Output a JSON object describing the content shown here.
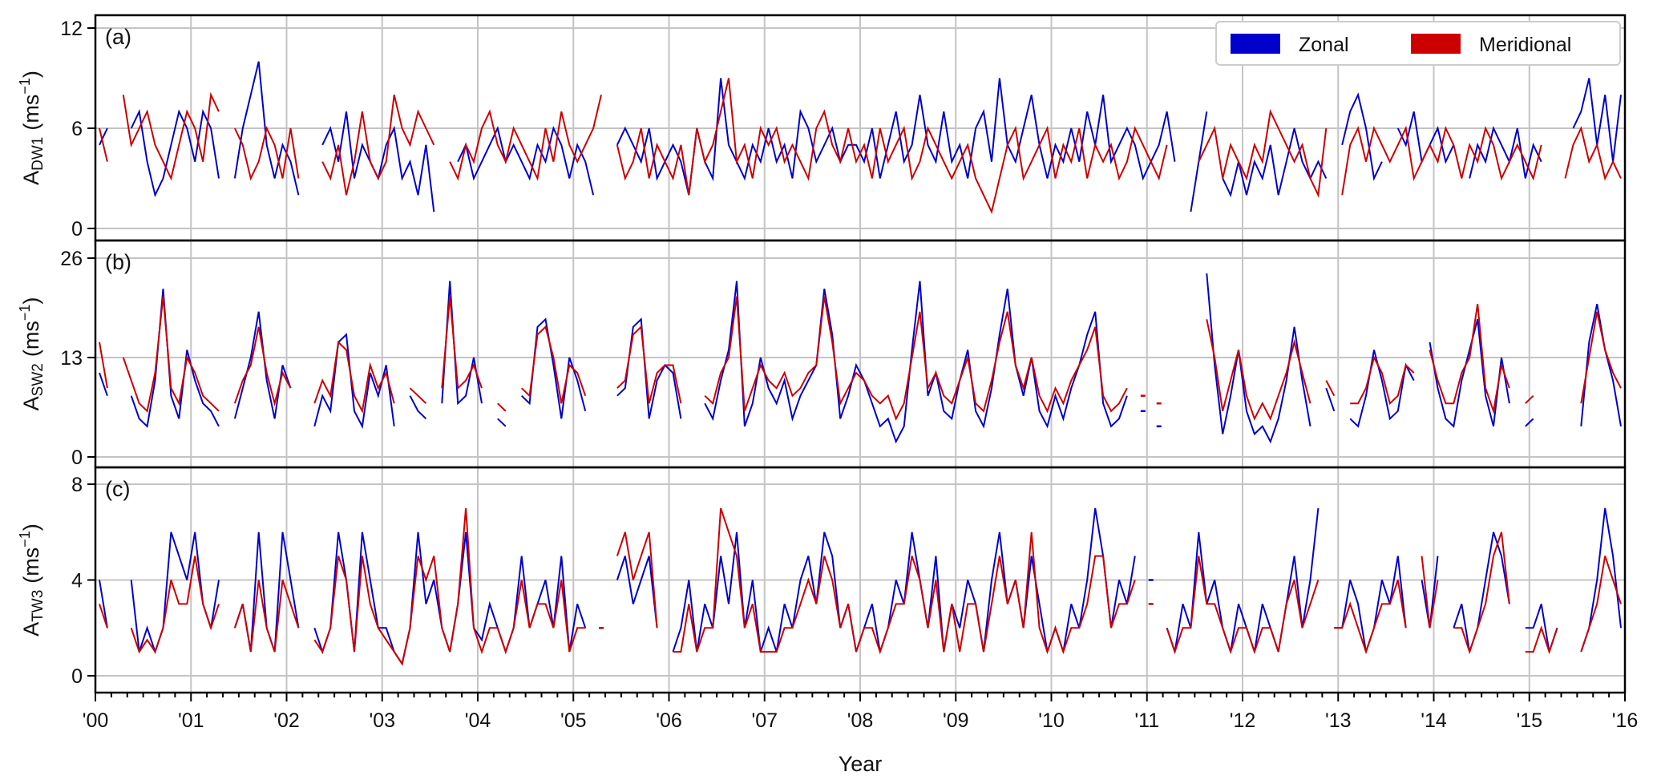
{
  "chart_data": {
    "type": "line",
    "xlabel": "Year",
    "x_ticks": [
      "'00",
      "'01",
      "'02",
      "'03",
      "'04",
      "'05",
      "'06",
      "'07",
      "'08",
      "'09",
      "'10",
      "'11",
      "'12",
      "'13",
      "'14",
      "'15",
      "'16"
    ],
    "x_range": [
      2000,
      2016
    ],
    "resolution": "monthly (approximate)",
    "legend": {
      "position": "top-right",
      "entries": [
        {
          "name": "Zonal",
          "color": "#0000cc"
        },
        {
          "name": "Meridional",
          "color": "#cc0000"
        }
      ]
    },
    "colors": {
      "zonal": "#0000cc",
      "meridional": "#cc0000"
    },
    "panels": [
      {
        "label": "(a)",
        "ylabel_main": "A",
        "ylabel_sub": "DW1",
        "ylabel_unit": "(ms",
        "ylabel_exp": "−1",
        "ylabel_close": ")",
        "ylim": [
          0,
          12
        ],
        "yticks": [
          0,
          6,
          12
        ],
        "zonal": [
          5,
          6,
          null,
          null,
          6,
          7,
          4,
          2,
          3,
          5,
          7,
          6,
          4,
          7,
          6,
          3,
          null,
          3,
          6,
          8,
          10,
          5,
          3,
          5,
          4,
          2,
          null,
          null,
          5,
          6,
          4,
          7,
          3,
          5,
          4,
          3,
          5,
          6,
          3,
          4,
          2,
          5,
          1,
          null,
          null,
          4,
          5,
          3,
          4,
          5,
          6,
          4,
          5,
          4,
          3,
          5,
          4,
          6,
          5,
          3,
          5,
          4,
          2,
          null,
          null,
          5,
          6,
          5,
          4,
          6,
          3,
          4,
          5,
          4,
          2,
          6,
          4,
          3,
          9,
          5,
          4,
          3,
          5,
          4,
          6,
          4,
          5,
          3,
          7,
          6,
          4,
          5,
          6,
          4,
          5,
          5,
          4,
          6,
          3,
          5,
          7,
          4,
          5,
          8,
          5,
          4,
          7,
          4,
          5,
          3,
          6,
          7,
          4,
          9,
          5,
          4,
          6,
          8,
          5,
          3,
          5,
          4,
          6,
          4,
          7,
          5,
          8,
          4,
          5,
          6,
          5,
          3,
          4,
          5,
          7,
          4,
          null,
          1,
          4,
          7,
          null,
          3,
          2,
          4,
          2,
          4,
          3,
          5,
          2,
          4,
          6,
          4,
          3,
          4,
          3,
          null,
          5,
          7,
          8,
          6,
          3,
          4,
          null,
          6,
          5,
          7,
          4,
          5,
          6,
          4,
          5,
          null,
          3,
          5,
          4,
          6,
          5,
          4,
          6,
          3,
          5,
          4,
          null,
          null,
          null,
          6,
          7,
          9,
          5,
          8,
          4,
          8
        ],
        "meridional": [
          6,
          4,
          null,
          8,
          5,
          6,
          7,
          5,
          4,
          3,
          5,
          7,
          6,
          4,
          8,
          7,
          null,
          6,
          5,
          3,
          4,
          6,
          5,
          3,
          6,
          3,
          null,
          null,
          4,
          3,
          5,
          2,
          4,
          7,
          4,
          3,
          4,
          8,
          6,
          5,
          7,
          6,
          5,
          null,
          4,
          3,
          5,
          4,
          6,
          7,
          5,
          4,
          6,
          5,
          4,
          3,
          6,
          4,
          7,
          5,
          4,
          5,
          6,
          8,
          null,
          5,
          3,
          4,
          6,
          3,
          5,
          4,
          3,
          5,
          2,
          6,
          4,
          5,
          7,
          9,
          4,
          5,
          3,
          6,
          5,
          6,
          4,
          5,
          4,
          3,
          6,
          7,
          5,
          4,
          6,
          4,
          5,
          3,
          6,
          4,
          5,
          6,
          3,
          4,
          6,
          5,
          4,
          3,
          4,
          5,
          3,
          2,
          1,
          3,
          5,
          6,
          3,
          4,
          5,
          6,
          3,
          5,
          4,
          6,
          3,
          5,
          4,
          5,
          3,
          4,
          6,
          5,
          4,
          3,
          5,
          null,
          null,
          null,
          4,
          5,
          6,
          3,
          5,
          4,
          3,
          5,
          4,
          7,
          6,
          5,
          4,
          5,
          3,
          2,
          6,
          null,
          2,
          5,
          6,
          4,
          6,
          5,
          4,
          5,
          6,
          3,
          4,
          5,
          4,
          6,
          5,
          3,
          5,
          4,
          6,
          5,
          3,
          4,
          5,
          4,
          3,
          5,
          null,
          null,
          3,
          5,
          6,
          4,
          5,
          3,
          4,
          3
        ]
      },
      {
        "label": "(b)",
        "ylabel_main": "A",
        "ylabel_sub": "SW2",
        "ylabel_unit": "(ms",
        "ylabel_exp": "−1",
        "ylabel_close": ")",
        "ylim": [
          0,
          26
        ],
        "yticks": [
          0,
          13,
          26
        ],
        "zonal": [
          11,
          8,
          null,
          null,
          8,
          5,
          4,
          10,
          22,
          8,
          5,
          14,
          10,
          7,
          6,
          4,
          null,
          5,
          9,
          13,
          19,
          10,
          5,
          12,
          9,
          null,
          null,
          4,
          8,
          6,
          15,
          16,
          6,
          4,
          11,
          8,
          12,
          4,
          null,
          8,
          6,
          5,
          null,
          7,
          23,
          7,
          8,
          13,
          7,
          null,
          5,
          4,
          null,
          8,
          7,
          17,
          18,
          12,
          5,
          13,
          10,
          6,
          null,
          null,
          null,
          8,
          9,
          17,
          18,
          5,
          10,
          12,
          11,
          5,
          null,
          null,
          7,
          5,
          10,
          14,
          23,
          4,
          7,
          13,
          9,
          7,
          10,
          5,
          8,
          10,
          12,
          22,
          16,
          5,
          8,
          12,
          10,
          7,
          4,
          5,
          2,
          4,
          14,
          23,
          8,
          11,
          6,
          5,
          10,
          14,
          6,
          4,
          9,
          16,
          22,
          12,
          8,
          13,
          6,
          4,
          8,
          5,
          9,
          12,
          16,
          19,
          7,
          4,
          5,
          8,
          null,
          6,
          null,
          4,
          null,
          null,
          null,
          null,
          null,
          24,
          12,
          3,
          8,
          14,
          6,
          3,
          4,
          2,
          5,
          10,
          17,
          10,
          4,
          null,
          9,
          6,
          null,
          5,
          4,
          8,
          14,
          10,
          5,
          6,
          12,
          10,
          null,
          15,
          9,
          5,
          4,
          10,
          14,
          18,
          8,
          4,
          13,
          7,
          null,
          4,
          5,
          null,
          null,
          null,
          null,
          null,
          4,
          15,
          20,
          14,
          10,
          4
        ],
        "meridional": [
          15,
          9,
          null,
          13,
          10,
          7,
          6,
          11,
          21,
          9,
          7,
          13,
          11,
          8,
          7,
          6,
          null,
          7,
          10,
          12,
          17,
          11,
          7,
          11,
          9,
          null,
          null,
          7,
          10,
          8,
          15,
          14,
          8,
          6,
          12,
          9,
          11,
          7,
          null,
          9,
          8,
          7,
          null,
          9,
          21,
          9,
          10,
          12,
          9,
          null,
          7,
          6,
          null,
          9,
          8,
          16,
          17,
          13,
          7,
          12,
          11,
          8,
          null,
          null,
          null,
          9,
          10,
          16,
          17,
          7,
          11,
          12,
          12,
          7,
          null,
          null,
          8,
          7,
          11,
          13,
          21,
          6,
          9,
          12,
          10,
          9,
          11,
          8,
          9,
          11,
          12,
          21,
          15,
          7,
          9,
          11,
          10,
          8,
          7,
          8,
          5,
          7,
          13,
          19,
          9,
          11,
          8,
          7,
          10,
          13,
          7,
          6,
          10,
          15,
          19,
          12,
          9,
          13,
          8,
          6,
          9,
          7,
          10,
          12,
          14,
          17,
          8,
          6,
          7,
          9,
          null,
          8,
          null,
          7,
          null,
          null,
          null,
          null,
          null,
          18,
          13,
          6,
          10,
          14,
          8,
          5,
          7,
          5,
          8,
          11,
          15,
          11,
          7,
          null,
          10,
          8,
          null,
          7,
          7,
          9,
          13,
          11,
          7,
          8,
          12,
          11,
          null,
          14,
          10,
          7,
          7,
          11,
          13,
          20,
          9,
          6,
          12,
          9,
          null,
          7,
          8,
          null,
          null,
          null,
          null,
          null,
          7,
          13,
          19,
          14,
          11,
          9
        ]
      },
      {
        "label": "(c)",
        "ylabel_main": "A",
        "ylabel_sub": "TW3",
        "ylabel_unit": "(ms",
        "ylabel_exp": "−1",
        "ylabel_close": ")",
        "ylim": [
          0,
          8
        ],
        "yticks": [
          0,
          4,
          8
        ],
        "zonal": [
          4,
          2,
          null,
          null,
          4,
          1,
          2,
          1,
          2,
          6,
          5,
          4,
          6,
          3,
          2,
          4,
          null,
          2,
          3,
          1,
          6,
          2,
          1,
          6,
          4,
          2,
          null,
          2,
          1,
          2,
          6,
          4,
          1,
          6,
          4,
          2,
          2,
          1,
          0.5,
          2,
          6,
          3,
          4,
          2,
          1,
          3,
          6,
          2,
          1.5,
          3,
          2,
          1,
          2,
          5,
          2,
          3,
          4,
          2,
          5,
          1,
          3,
          2,
          null,
          2,
          null,
          4,
          5,
          3,
          4,
          5,
          2,
          null,
          1,
          2,
          4,
          1,
          3,
          2,
          5,
          3,
          6,
          2,
          4,
          1,
          2,
          1,
          3,
          2,
          4,
          5,
          3,
          6,
          5,
          2,
          3,
          1,
          2,
          3,
          1,
          2,
          4,
          3,
          6,
          4,
          2,
          5,
          1,
          3,
          2,
          4,
          3,
          1,
          4,
          6,
          3,
          4,
          2,
          5,
          3,
          1,
          2,
          1,
          3,
          2,
          4,
          7,
          5,
          2,
          4,
          3,
          5,
          null,
          4,
          null,
          2,
          1,
          3,
          2,
          6,
          3,
          4,
          2,
          1,
          3,
          2,
          1,
          3,
          2,
          1,
          3,
          5,
          2,
          4,
          7,
          null,
          2,
          2,
          4,
          3,
          1,
          2,
          4,
          3,
          5,
          2,
          null,
          4,
          2,
          5,
          null,
          2,
          3,
          1,
          2,
          4,
          6,
          5,
          3,
          null,
          2,
          2,
          3,
          1,
          2,
          null,
          null,
          1,
          2,
          4,
          7,
          5,
          2
        ],
        "meridional": [
          3,
          2,
          null,
          null,
          2,
          1,
          1.5,
          1,
          2,
          4,
          3,
          3,
          5,
          3,
          2,
          3,
          null,
          2,
          3,
          1,
          4,
          2,
          1,
          4,
          3,
          2,
          null,
          1.5,
          1,
          2,
          5,
          4,
          1,
          5,
          3,
          2,
          1.5,
          1,
          0.5,
          2,
          5,
          4,
          5,
          2,
          1,
          3,
          7,
          2,
          1,
          2,
          2,
          1,
          2,
          4,
          2,
          3,
          3,
          2,
          4,
          1,
          2,
          2,
          null,
          2,
          null,
          5,
          6,
          4,
          5,
          6,
          2,
          null,
          1,
          1,
          3,
          1,
          2,
          2,
          7,
          6,
          5,
          2,
          3,
          1,
          1,
          1,
          2,
          2,
          3,
          4,
          3,
          5,
          4,
          2,
          3,
          1,
          2,
          2,
          1,
          2,
          3,
          3,
          5,
          4,
          2,
          4,
          1,
          3,
          1,
          3,
          3,
          1,
          3,
          5,
          3,
          4,
          2,
          6,
          2,
          1,
          2,
          1,
          2,
          2,
          3,
          5,
          5,
          2,
          3,
          3,
          4,
          null,
          3,
          null,
          2,
          1,
          2,
          2,
          5,
          3,
          3,
          2,
          1,
          2,
          2,
          1,
          2,
          2,
          1,
          3,
          4,
          2,
          3,
          4,
          null,
          2,
          2,
          3,
          2,
          1,
          2,
          3,
          3,
          4,
          2,
          null,
          5,
          2,
          4,
          null,
          2,
          2,
          1,
          2,
          3,
          5,
          6,
          3,
          null,
          1,
          1,
          2,
          1,
          2,
          null,
          null,
          1,
          2,
          3,
          5,
          4,
          3
        ]
      }
    ]
  }
}
